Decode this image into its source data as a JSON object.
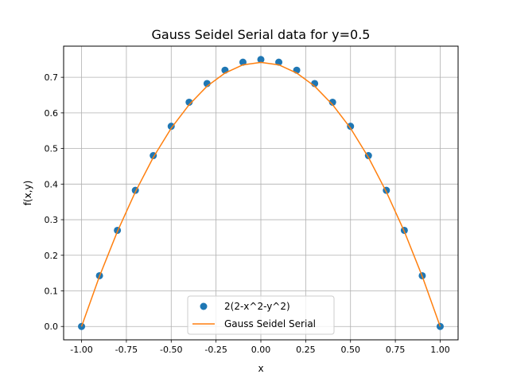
{
  "chart_data": {
    "type": "line",
    "title": "Gauss Seidel Serial data for y=0.5",
    "xlabel": "x",
    "ylabel": "f(x,y)",
    "xlim": [
      -1.1,
      1.1
    ],
    "ylim": [
      -0.0375,
      0.7875
    ],
    "xticks": [
      -1.0,
      -0.75,
      -0.5,
      -0.25,
      0.0,
      0.25,
      0.5,
      0.75,
      1.0
    ],
    "xtick_labels": [
      "-1.00",
      "-0.75",
      "-0.50",
      "-0.25",
      "0.00",
      "0.25",
      "0.50",
      "0.75",
      "1.00"
    ],
    "yticks": [
      0.0,
      0.1,
      0.2,
      0.3,
      0.4,
      0.5,
      0.6,
      0.7
    ],
    "ytick_labels": [
      "0.0",
      "0.1",
      "0.2",
      "0.3",
      "0.4",
      "0.5",
      "0.6",
      "0.7"
    ],
    "grid": true,
    "legend_position": "lower-center",
    "series": [
      {
        "name": "2(2-x^2-y^2)",
        "kind": "scatter",
        "color": "#1f77b4",
        "x": [
          -1.0,
          -0.9,
          -0.8,
          -0.7,
          -0.6,
          -0.5,
          -0.4,
          -0.3,
          -0.2,
          -0.1,
          0.0,
          0.1,
          0.2,
          0.3,
          0.4,
          0.5,
          0.6,
          0.7,
          0.8,
          0.9,
          1.0
        ],
        "y": [
          0.0,
          0.1425,
          0.27,
          0.3825,
          0.48,
          0.5625,
          0.63,
          0.6825,
          0.72,
          0.7425,
          0.75,
          0.7425,
          0.72,
          0.6825,
          0.63,
          0.5625,
          0.48,
          0.3825,
          0.27,
          0.1425,
          0.0
        ]
      },
      {
        "name": "Gauss Seidel Serial",
        "kind": "line",
        "color": "#ff7f0e",
        "x": [
          -1.0,
          -0.9,
          -0.8,
          -0.7,
          -0.6,
          -0.5,
          -0.4,
          -0.3,
          -0.2,
          -0.1,
          0.0,
          0.1,
          0.2,
          0.3,
          0.4,
          0.5,
          0.6,
          0.7,
          0.8,
          0.9,
          1.0
        ],
        "y": [
          0.0,
          0.141,
          0.267,
          0.378,
          0.475,
          0.557,
          0.623,
          0.675,
          0.712,
          0.735,
          0.742,
          0.735,
          0.712,
          0.675,
          0.623,
          0.557,
          0.475,
          0.378,
          0.267,
          0.141,
          0.0
        ]
      }
    ]
  }
}
